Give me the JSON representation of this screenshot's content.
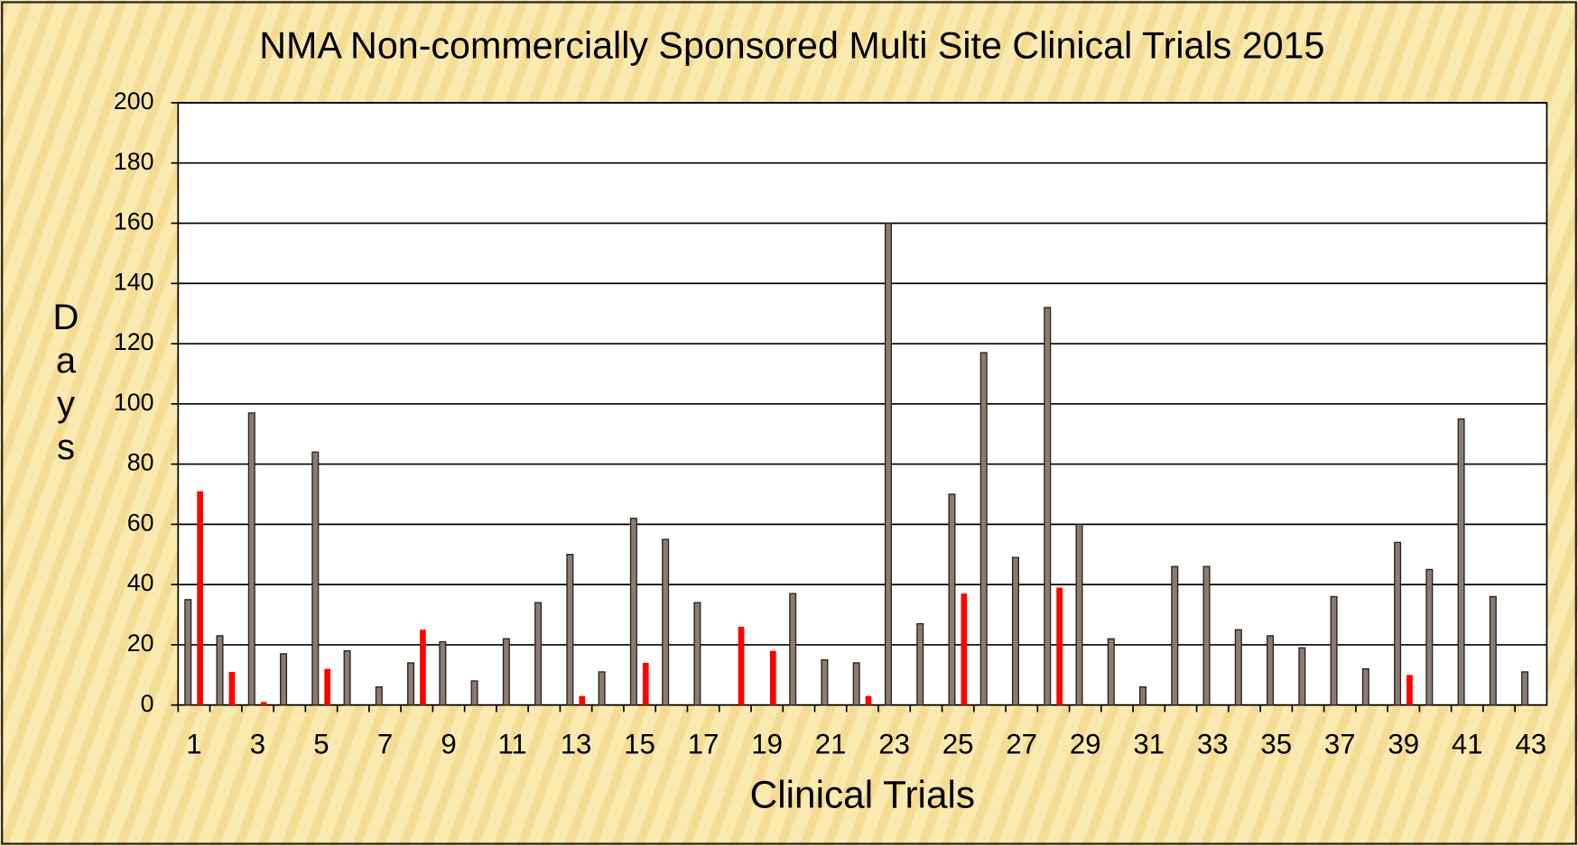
{
  "chart_data": {
    "type": "bar",
    "title": "NMA Non-commercially Sponsored Multi Site Clinical Trials 2015",
    "x_label": "Clinical Trials",
    "y_label": "Days",
    "categories": [
      "1",
      null,
      "3",
      null,
      "5",
      null,
      "7",
      null,
      "9",
      null,
      "11",
      null,
      "13",
      null,
      "15",
      null,
      "17",
      null,
      "19",
      null,
      "21",
      null,
      "23",
      null,
      "25",
      null,
      "27",
      null,
      "29",
      null,
      "31",
      null,
      "33",
      null,
      "35",
      null,
      "37",
      null,
      "39",
      null,
      "41",
      null,
      "43"
    ],
    "series": [
      {
        "color": "#8c7b72",
        "values": [
          35,
          23,
          97,
          17,
          84,
          18,
          6,
          14,
          21,
          8,
          22,
          34,
          50,
          11,
          62,
          55,
          34,
          null,
          null,
          37,
          15,
          14,
          160,
          27,
          70,
          117,
          49,
          132,
          60,
          22,
          6,
          46,
          46,
          25,
          23,
          19,
          36,
          12,
          54,
          45,
          95,
          36,
          11
        ]
      },
      {
        "color": "#ff0000",
        "values": [
          71,
          11,
          1,
          null,
          12,
          null,
          null,
          25,
          null,
          null,
          null,
          null,
          3,
          null,
          14,
          null,
          null,
          26,
          18,
          null,
          null,
          3,
          null,
          null,
          37,
          null,
          null,
          39,
          null,
          null,
          null,
          null,
          null,
          null,
          null,
          null,
          null,
          null,
          10,
          null,
          null,
          null,
          null
        ]
      }
    ],
    "ylim": [
      0,
      200
    ],
    "yticks": [
      0,
      20,
      40,
      60,
      80,
      100,
      120,
      140,
      160,
      180,
      200
    ],
    "grid": true
  }
}
